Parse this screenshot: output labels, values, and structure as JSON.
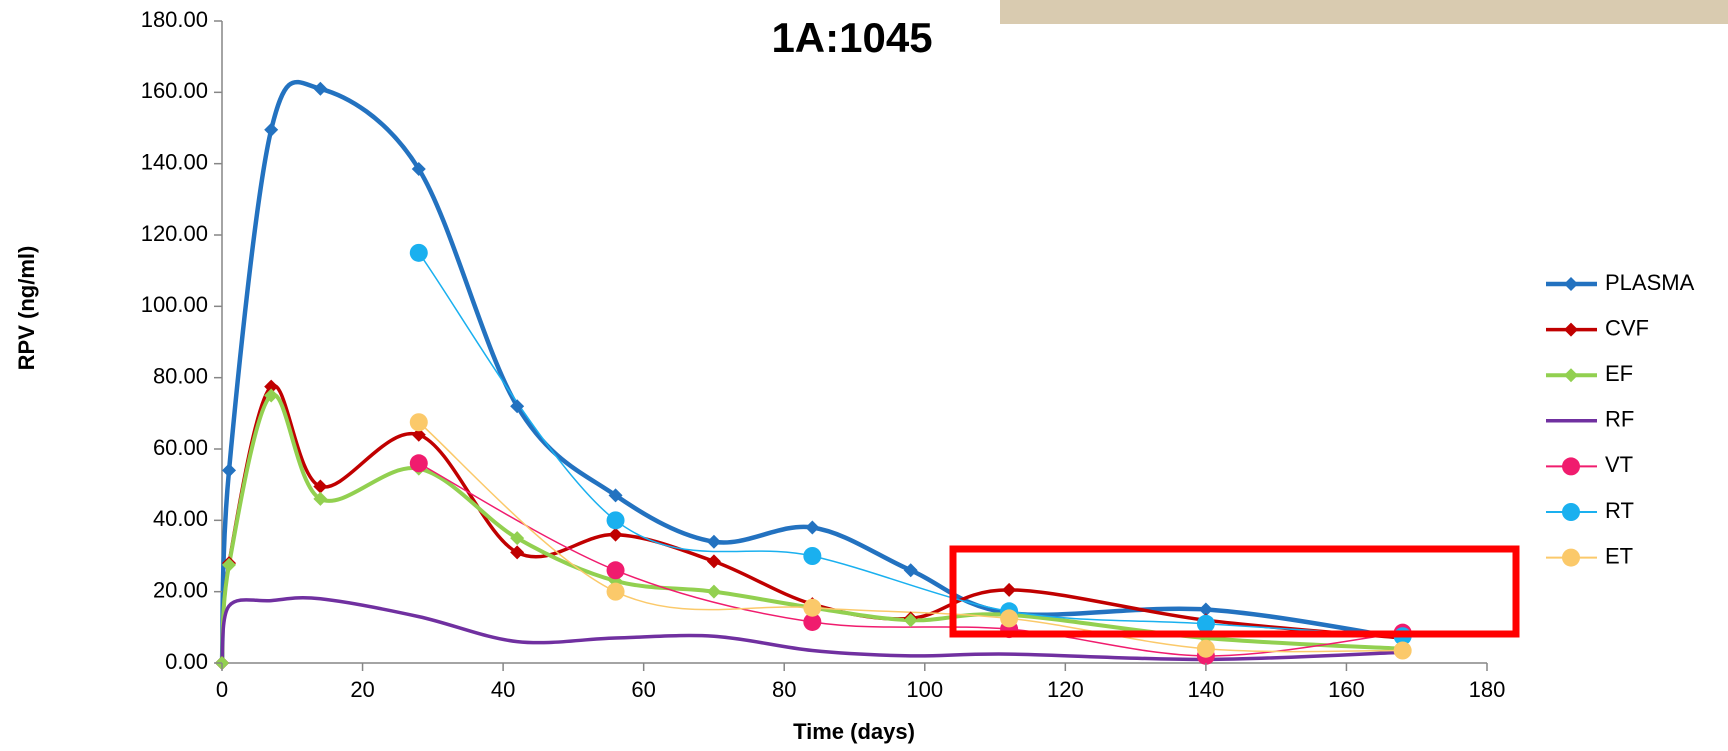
{
  "chart_data": {
    "type": "line",
    "title": "1A:1045",
    "x_label": "Time (days)",
    "y_label": "RPV (ng/ml)",
    "xlim": [
      0,
      180
    ],
    "xticks": [
      0,
      20,
      40,
      60,
      80,
      100,
      120,
      140,
      160,
      180
    ],
    "ylim": [
      0,
      180
    ],
    "yticks": [
      {
        "value": 0,
        "label": "0.00"
      },
      {
        "value": 20,
        "label": "20.00"
      },
      {
        "value": 40,
        "label": "40.00"
      },
      {
        "value": 60,
        "label": "60.00"
      },
      {
        "value": 80,
        "label": "80.00"
      },
      {
        "value": 100,
        "label": "100.00"
      },
      {
        "value": 120,
        "label": "120.00"
      },
      {
        "value": 140,
        "label": "140.00"
      },
      {
        "value": 160,
        "label": "160.00"
      },
      {
        "value": 180,
        "label": "180.00"
      }
    ],
    "legend": "right",
    "series": [
      {
        "name": "PLASMA",
        "color": "#2372c0",
        "marker": "diamond",
        "width": 4.5,
        "x": [
          0,
          1,
          7,
          14,
          28,
          42,
          56,
          70,
          84,
          98,
          112,
          140,
          168
        ],
        "values": [
          0,
          54,
          149.5,
          161,
          138.5,
          72,
          47,
          34,
          38,
          26,
          14,
          15,
          7
        ]
      },
      {
        "name": "CVF",
        "color": "#c00000",
        "marker": "diamond",
        "width": 3.5,
        "x": [
          0,
          1,
          7,
          14,
          28,
          42,
          56,
          70,
          84,
          98,
          112,
          140,
          168
        ],
        "values": [
          0,
          28,
          77.5,
          49.5,
          64,
          31,
          36,
          28.5,
          16.5,
          12.5,
          20.5,
          12,
          7
        ]
      },
      {
        "name": "EF",
        "color": "#92d050",
        "marker": "diamond",
        "width": 4,
        "x": [
          0,
          1,
          7,
          14,
          28,
          42,
          56,
          70,
          84,
          98,
          112,
          140,
          168
        ],
        "values": [
          0,
          27.5,
          75,
          46,
          54.5,
          35,
          23,
          20,
          15.5,
          12,
          13.5,
          7,
          4
        ]
      },
      {
        "name": "RF",
        "color": "#7030a0",
        "marker": "none",
        "width": 3.5,
        "x": [
          0,
          1,
          7,
          14,
          28,
          42,
          56,
          70,
          84,
          98,
          112,
          140,
          168
        ],
        "values": [
          0,
          16,
          17.5,
          18,
          13,
          6,
          7,
          7.5,
          3.5,
          2,
          2.5,
          1,
          3
        ]
      },
      {
        "name": "VT",
        "color": "#f01c6e",
        "marker": "circle",
        "width": 1.5,
        "x": [
          28,
          56,
          84,
          112,
          140,
          168
        ],
        "values": [
          56,
          26,
          11.5,
          9.5,
          2,
          8.5
        ]
      },
      {
        "name": "RT",
        "color": "#1ab0ef",
        "marker": "circle",
        "width": 1.5,
        "x": [
          28,
          56,
          84,
          112,
          140,
          168
        ],
        "values": [
          115,
          40,
          30,
          14.5,
          11,
          7.5
        ]
      },
      {
        "name": "ET",
        "color": "#fbc96a",
        "marker": "circle",
        "width": 1.5,
        "x": [
          28,
          56,
          84,
          112,
          140,
          168
        ],
        "values": [
          67.5,
          20,
          15.5,
          12.5,
          4,
          3.5
        ]
      }
    ]
  }
}
